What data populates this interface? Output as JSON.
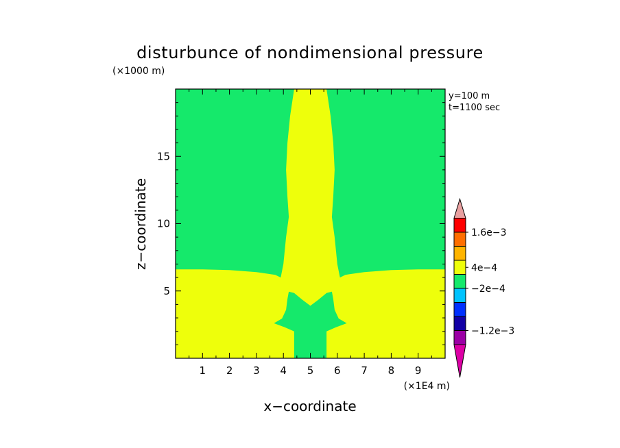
{
  "chart_data": {
    "type": "heatmap",
    "title": "disturbunce of nondimensional pressure",
    "xlabel": "x−coordinate",
    "ylabel": "z−coordinate",
    "x_unit": "(×1E4 m)",
    "y_unit": "(×1000 m)",
    "info_lines": [
      "y=100 m",
      "t=1100 sec"
    ],
    "xlim": [
      0,
      10
    ],
    "ylim": [
      0,
      20
    ],
    "x_ticks": [
      1,
      2,
      3,
      4,
      5,
      6,
      7,
      8,
      9
    ],
    "y_ticks": [
      5,
      10,
      15
    ],
    "background_color": "#15e96b",
    "field_color": "#eeff0b",
    "regions": [
      {
        "name": "yellow-field",
        "color": "#eeff0b",
        "polygon": [
          [
            0.0,
            0.0
          ],
          [
            10.0,
            0.0
          ],
          [
            10.0,
            6.6
          ],
          [
            9.0,
            6.6
          ],
          [
            8.0,
            6.55
          ],
          [
            7.0,
            6.4
          ],
          [
            6.3,
            6.2
          ],
          [
            6.1,
            6.0
          ],
          [
            6.0,
            7.0
          ],
          [
            5.9,
            9.0
          ],
          [
            5.8,
            10.5
          ],
          [
            5.85,
            12.0
          ],
          [
            5.9,
            14.0
          ],
          [
            5.85,
            16.0
          ],
          [
            5.75,
            18.0
          ],
          [
            5.6,
            20.0
          ],
          [
            4.4,
            20.0
          ],
          [
            4.25,
            18.0
          ],
          [
            4.15,
            16.0
          ],
          [
            4.1,
            14.0
          ],
          [
            4.15,
            12.0
          ],
          [
            4.2,
            10.5
          ],
          [
            4.1,
            9.0
          ],
          [
            4.0,
            7.0
          ],
          [
            3.9,
            6.0
          ],
          [
            3.7,
            6.2
          ],
          [
            3.0,
            6.4
          ],
          [
            2.0,
            6.55
          ],
          [
            1.0,
            6.6
          ],
          [
            0.0,
            6.6
          ]
        ]
      },
      {
        "name": "green-core",
        "color": "#15e96b",
        "polygon": [
          [
            4.4,
            0.0
          ],
          [
            5.6,
            0.0
          ],
          [
            5.6,
            2.0
          ],
          [
            5.95,
            2.3
          ],
          [
            6.35,
            2.6
          ],
          [
            6.05,
            2.95
          ],
          [
            5.9,
            3.6
          ],
          [
            5.85,
            4.4
          ],
          [
            5.8,
            4.95
          ],
          [
            5.6,
            4.85
          ],
          [
            5.3,
            4.35
          ],
          [
            5.0,
            3.9
          ],
          [
            4.7,
            4.35
          ],
          [
            4.4,
            4.85
          ],
          [
            4.2,
            4.95
          ],
          [
            4.15,
            4.4
          ],
          [
            4.1,
            3.6
          ],
          [
            3.95,
            2.95
          ],
          [
            3.65,
            2.6
          ],
          [
            4.05,
            2.3
          ],
          [
            4.4,
            2.0
          ]
        ]
      }
    ],
    "colorbar": {
      "colors_bottom_to_top": [
        "#dc00a5",
        "#9b00a5",
        "#1200a5",
        "#0030ff",
        "#00c3ff",
        "#15e96b",
        "#eeff0b",
        "#ffb400",
        "#ff6e00",
        "#ff0000",
        "#e8a0a0"
      ],
      "labels": [
        {
          "text": "−1.2e−3",
          "boundary": 2
        },
        {
          "text": "−2e−4",
          "boundary": 5
        },
        {
          "text": "4e−4",
          "boundary": 6.5
        },
        {
          "text": "1.6e−3",
          "boundary": 9
        }
      ]
    }
  }
}
